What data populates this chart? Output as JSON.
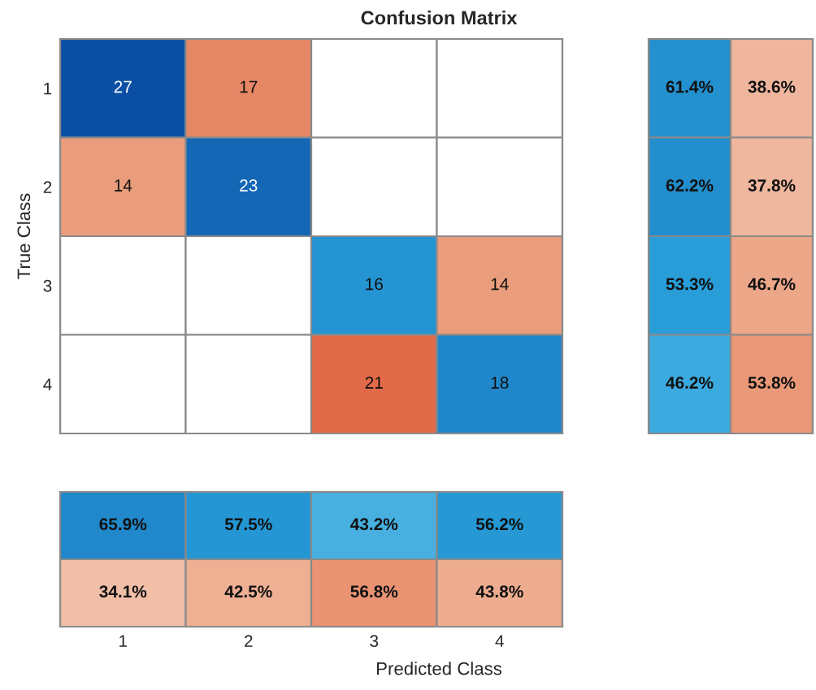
{
  "chart_data": [
    {
      "type": "heatmap",
      "title": "Confusion Matrix",
      "ylabel": "True Class",
      "categories": [
        "1",
        "2",
        "3",
        "4"
      ],
      "y_categories": [
        "1",
        "2",
        "3",
        "4"
      ],
      "tick_labels": "y",
      "data_labels": true,
      "cells": [
        [
          27,
          17,
          null,
          null
        ],
        [
          14,
          23,
          null,
          null
        ],
        [
          null,
          null,
          16,
          14
        ],
        [
          null,
          null,
          21,
          18
        ]
      ]
    },
    {
      "type": "heatmap",
      "categories": [
        null,
        null
      ],
      "y_categories": [
        null,
        null,
        null,
        null
      ],
      "tick_labels": false,
      "cells": [
        [
          61.4,
          38.6
        ],
        [
          62.2,
          37.8
        ],
        [
          53.3,
          46.7
        ],
        [
          46.2,
          53.8
        ]
      ],
      "cell_labels": [
        [
          "61.4%",
          "38.6%"
        ],
        [
          "62.2%",
          "37.8%"
        ],
        [
          "53.3%",
          "46.7%"
        ],
        [
          "46.2%",
          "53.8%"
        ]
      ]
    },
    {
      "type": "heatmap",
      "xlabel": "Predicted Class",
      "categories": [
        "1",
        "2",
        "3",
        "4"
      ],
      "y_categories": [
        null,
        null
      ],
      "tick_labels": "x",
      "cells": [
        [
          65.9,
          57.5,
          43.2,
          56.2
        ],
        [
          34.1,
          42.5,
          56.8,
          43.8
        ]
      ],
      "cell_labels": [
        [
          "65.9%",
          "57.5%",
          "43.2%",
          "56.2%"
        ],
        [
          "34.1%",
          "42.5%",
          "56.8%",
          "43.8%"
        ]
      ]
    }
  ]
}
